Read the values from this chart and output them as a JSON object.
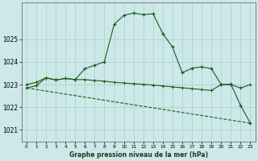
{
  "background_color": "#cde8e8",
  "grid_color": "#aacccc",
  "line_color": "#1a5c1a",
  "xlabel": "Graphe pression niveau de la mer (hPa)",
  "xlim": [
    -0.5,
    23.5
  ],
  "ylim": [
    1020.5,
    1026.6
  ],
  "yticks": [
    1021,
    1022,
    1023,
    1024,
    1025
  ],
  "xticks": [
    0,
    1,
    2,
    3,
    4,
    5,
    6,
    7,
    8,
    9,
    10,
    11,
    12,
    13,
    14,
    15,
    16,
    17,
    18,
    19,
    20,
    21,
    22,
    23
  ],
  "series1_x": [
    0,
    1,
    2,
    3,
    4,
    5,
    6,
    7,
    8,
    9,
    10,
    11,
    12,
    13,
    14,
    15,
    16,
    17,
    18,
    19,
    20,
    21,
    22,
    23
  ],
  "series1_y": [
    1022.85,
    1022.95,
    1023.3,
    1023.2,
    1023.27,
    1023.22,
    1023.7,
    1023.85,
    1024.0,
    1025.65,
    1026.05,
    1026.15,
    1026.08,
    1026.12,
    1025.25,
    1024.65,
    1023.52,
    1023.72,
    1023.78,
    1023.7,
    1023.0,
    1023.02,
    1022.08,
    1021.3
  ],
  "series2_x": [
    0,
    1,
    2,
    3,
    4,
    5,
    6,
    7,
    8,
    9,
    10,
    11,
    12,
    13,
    14,
    15,
    16,
    17,
    18,
    19,
    20,
    21,
    22,
    23
  ],
  "series2_y": [
    1023.0,
    1023.1,
    1023.3,
    1023.2,
    1023.27,
    1023.22,
    1023.22,
    1023.18,
    1023.15,
    1023.1,
    1023.07,
    1023.04,
    1023.01,
    1022.98,
    1022.94,
    1022.9,
    1022.86,
    1022.82,
    1022.78,
    1022.74,
    1023.0,
    1023.0,
    1022.85,
    1023.0
  ],
  "series3_x": [
    0,
    23
  ],
  "series3_y": [
    1022.85,
    1021.3
  ]
}
